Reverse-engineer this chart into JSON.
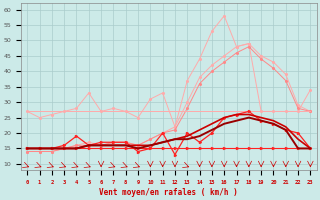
{
  "x": [
    0,
    1,
    2,
    3,
    4,
    5,
    6,
    7,
    8,
    9,
    10,
    11,
    12,
    13,
    14,
    15,
    16,
    17,
    18,
    19,
    20,
    21,
    22,
    23
  ],
  "line_pink_flat": [
    27,
    27,
    27,
    27,
    27,
    27,
    27,
    27,
    27,
    27,
    27,
    27,
    27,
    27,
    27,
    27,
    27,
    27,
    27,
    27,
    27,
    27,
    27,
    27
  ],
  "line_pink_spiky": [
    27,
    25,
    26,
    27,
    28,
    33,
    27,
    28,
    27,
    25,
    31,
    33,
    22,
    37,
    44,
    53,
    58,
    48,
    49,
    27,
    27,
    27,
    27,
    34
  ],
  "line_pink_ramp": [
    14,
    14,
    14,
    15,
    16,
    16,
    16,
    17,
    17,
    16,
    18,
    20,
    21,
    28,
    36,
    40,
    43,
    46,
    48,
    44,
    41,
    37,
    28,
    27
  ],
  "line_pink_ramp2": [
    14,
    14,
    14,
    15,
    16,
    17,
    16,
    17,
    17,
    16,
    18,
    20,
    22,
    30,
    38,
    42,
    45,
    48,
    49,
    45,
    43,
    39,
    29,
    27
  ],
  "line_red_flat": [
    15,
    15,
    15,
    15,
    15,
    15,
    15,
    15,
    15,
    15,
    15,
    15,
    15,
    15,
    15,
    15,
    15,
    15,
    15,
    15,
    15,
    15,
    15,
    15
  ],
  "line_dark_smooth": [
    15,
    15,
    15,
    15,
    15,
    16,
    16,
    16,
    16,
    16,
    16,
    17,
    18,
    19,
    21,
    23,
    25,
    26,
    26,
    25,
    24,
    22,
    18,
    15
  ],
  "line_dark_bumpy": [
    15,
    15,
    15,
    16,
    19,
    16,
    17,
    17,
    17,
    14,
    15,
    20,
    13,
    20,
    17,
    20,
    25,
    26,
    27,
    24,
    23,
    21,
    20,
    15
  ],
  "line_dark_bold": [
    15,
    15,
    15,
    15,
    15,
    16,
    16,
    16,
    16,
    15,
    16,
    17,
    18,
    18,
    19,
    21,
    23,
    24,
    25,
    24,
    23,
    21,
    15,
    15
  ],
  "bg_color": "#cceae8",
  "grid_color": "#aacccc",
  "color_light_pink": "#ffaaaa",
  "color_med_pink": "#ff8888",
  "color_bright_red": "#ff2222",
  "color_dark_red": "#cc0000",
  "color_very_dark": "#990000",
  "xlabel": "Vent moyen/en rafales ( km/h )",
  "yticks": [
    10,
    15,
    20,
    25,
    30,
    35,
    40,
    45,
    50,
    55,
    60
  ],
  "arrow_angles": [
    45,
    45,
    45,
    45,
    45,
    45,
    0,
    45,
    45,
    45,
    0,
    0,
    0,
    45,
    0,
    0,
    0,
    0,
    0,
    0,
    0,
    0,
    0,
    0
  ]
}
